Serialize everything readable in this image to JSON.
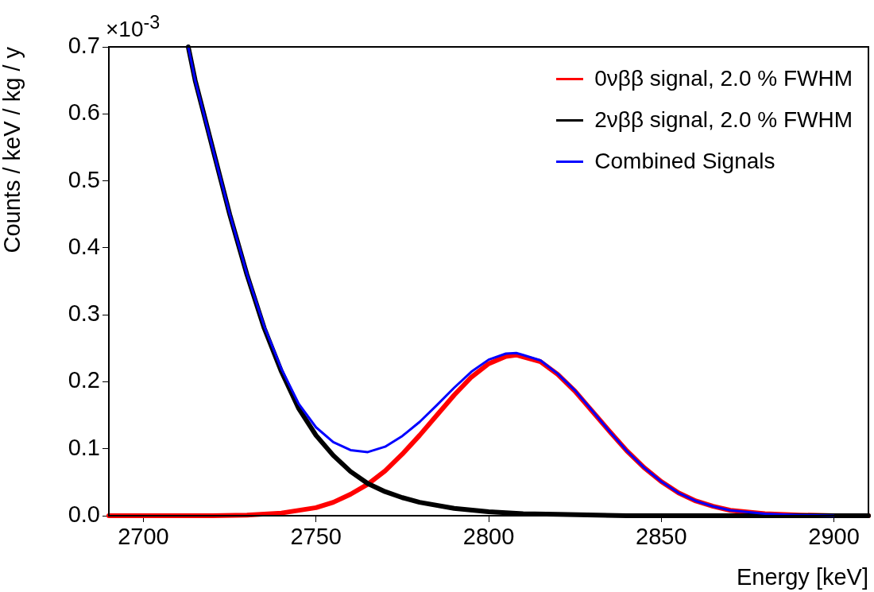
{
  "chart_data": {
    "type": "line",
    "xlabel": "Energy [keV]",
    "ylabel": "Counts / keV / kg / y",
    "annotations": [
      "×10$^{-3}$"
    ],
    "xlim": [
      2690,
      2910
    ],
    "xticks": [
      2700,
      2750,
      2800,
      2850,
      2900
    ],
    "ylim": [
      0,
      0.7
    ],
    "yticks": [
      {
        "value": 0,
        "label": "0.0"
      },
      0.1,
      0.2,
      0.3,
      0.4,
      0.5,
      0.6,
      0.7
    ],
    "legend": "top right",
    "grid": false,
    "marker": "none",
    "line_style": "solid",
    "series": [
      {
        "name": "0νββ signal, 2.0 % FWHM",
        "color": "#ff0000",
        "x": [
          2690,
          2720,
          2730,
          2740,
          2750,
          2755,
          2760,
          2765,
          2770,
          2775,
          2780,
          2785,
          2790,
          2795,
          2800,
          2805,
          2808,
          2810,
          2815,
          2820,
          2825,
          2830,
          2835,
          2840,
          2845,
          2850,
          2855,
          2860,
          2865,
          2870,
          2880,
          2890,
          2900,
          2910
        ],
        "values": [
          0,
          0,
          0.001,
          0.004,
          0.012,
          0.02,
          0.032,
          0.047,
          0.067,
          0.092,
          0.12,
          0.15,
          0.18,
          0.207,
          0.227,
          0.238,
          0.24,
          0.237,
          0.23,
          0.211,
          0.186,
          0.156,
          0.126,
          0.097,
          0.072,
          0.051,
          0.034,
          0.022,
          0.014,
          0.008,
          0.003,
          0.001,
          0,
          0
        ]
      },
      {
        "name": "2νββ signal, 2.0 % FWHM",
        "color": "#000000",
        "x": [
          2713,
          2715,
          2720,
          2725,
          2730,
          2735,
          2740,
          2745,
          2750,
          2755,
          2760,
          2765,
          2770,
          2775,
          2780,
          2790,
          2800,
          2810,
          2820,
          2840,
          2860,
          2910
        ],
        "values": [
          0.7,
          0.65,
          0.55,
          0.45,
          0.36,
          0.28,
          0.215,
          0.16,
          0.12,
          0.09,
          0.066,
          0.048,
          0.036,
          0.027,
          0.02,
          0.011,
          0.006,
          0.003,
          0.002,
          0,
          0,
          0
        ]
      },
      {
        "name": "Combined Signals",
        "color": "#0000ff",
        "x": [
          2713,
          2715,
          2720,
          2725,
          2730,
          2735,
          2740,
          2745,
          2750,
          2755,
          2760,
          2765,
          2770,
          2775,
          2780,
          2785,
          2790,
          2795,
          2800,
          2805,
          2808,
          2810,
          2815,
          2820,
          2825,
          2830,
          2835,
          2840,
          2845,
          2850,
          2855,
          2860,
          2865,
          2870,
          2880,
          2890,
          2900
        ],
        "values": [
          0.7,
          0.65,
          0.55,
          0.451,
          0.361,
          0.283,
          0.219,
          0.167,
          0.132,
          0.11,
          0.098,
          0.095,
          0.103,
          0.119,
          0.14,
          0.165,
          0.191,
          0.215,
          0.233,
          0.242,
          0.243,
          0.24,
          0.232,
          0.212,
          0.187,
          0.157,
          0.126,
          0.097,
          0.072,
          0.051,
          0.034,
          0.022,
          0.014,
          0.008,
          0.003,
          0.001,
          0
        ]
      }
    ]
  }
}
